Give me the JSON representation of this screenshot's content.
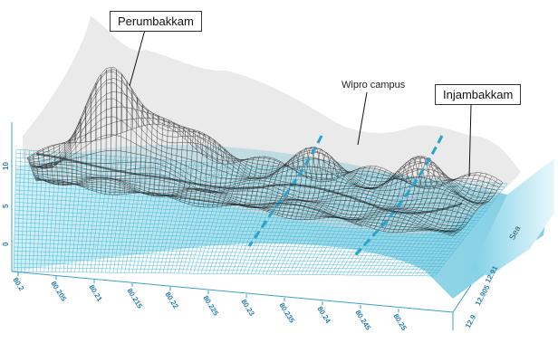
{
  "labels": {
    "perumbakkam": "Perumbakkam",
    "injambakkam": "Injambakkam",
    "wipro": "Wipro campus",
    "sea": "Sea"
  },
  "axes": {
    "x_ticks": [
      "80.2",
      "80.205",
      "80.21",
      "80.215",
      "80.22",
      "80.225",
      "80.23",
      "80.235",
      "80.24",
      "80.245",
      "80.25"
    ],
    "y_ticks": [
      "12.9",
      "12.905",
      "12.91"
    ],
    "z_ticks": [
      "0",
      "5",
      "10"
    ]
  },
  "colors": {
    "terrain_mesh": "#1a1a1a",
    "water_mesh": "#3fb3d0",
    "water_fill": "#8fd6e8",
    "tick_text": "#2a7fb0",
    "axis_line": "#3aa0c8"
  }
}
